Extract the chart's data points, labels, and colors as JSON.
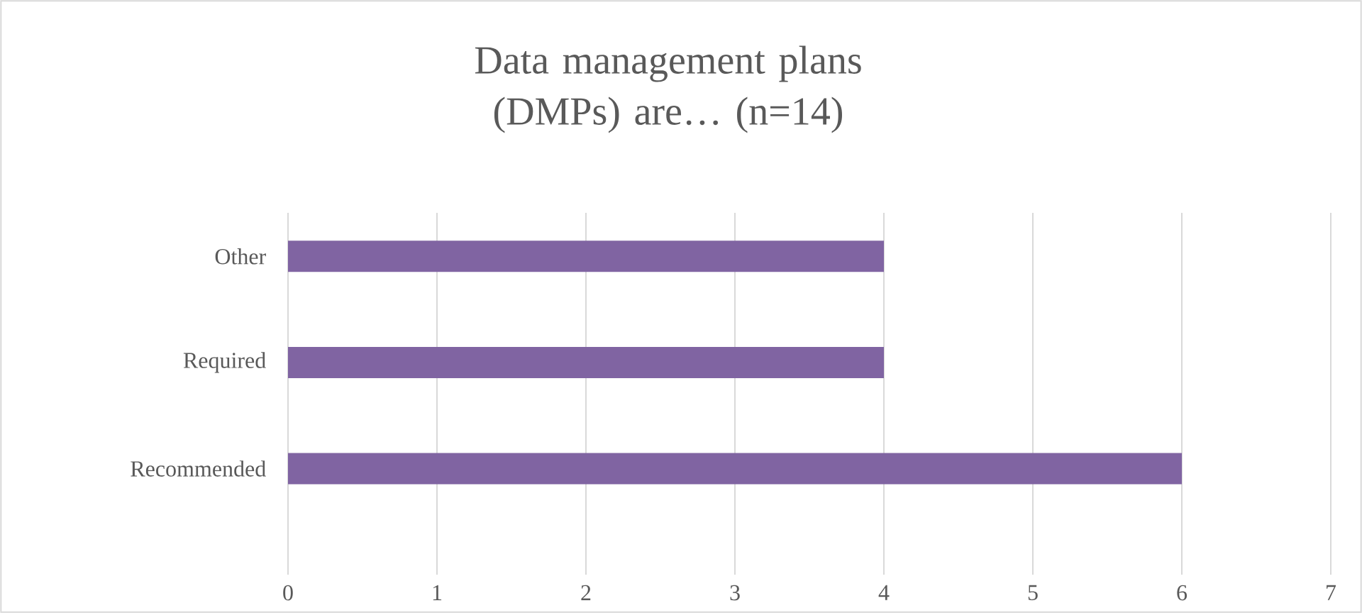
{
  "chart_data": {
    "type": "bar",
    "orientation": "horizontal",
    "title": "Data management plans (DMPs) are… (n=14)",
    "categories": [
      "Other",
      "Required",
      "Recommended"
    ],
    "values": [
      4,
      4,
      6
    ],
    "color": "#8064a2",
    "xlim": [
      0,
      7
    ],
    "xticks": [
      0,
      1,
      2,
      3,
      4,
      5,
      6,
      7
    ],
    "grid": "x"
  }
}
